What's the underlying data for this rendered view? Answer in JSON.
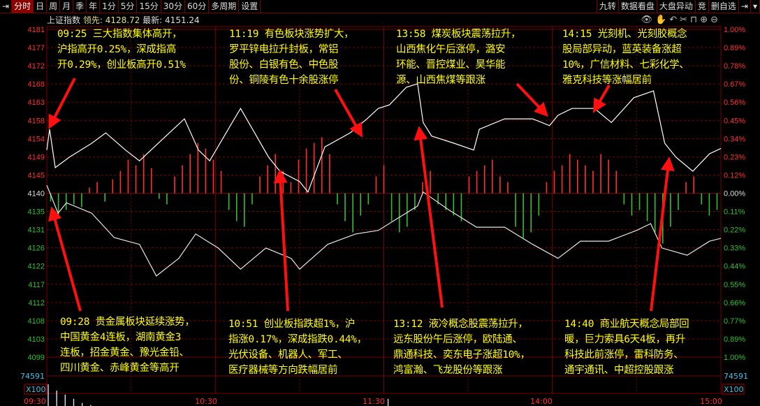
{
  "toolbar": {
    "items": [
      "分时",
      "日",
      "周",
      "月",
      "季",
      "年",
      "1分",
      "5分",
      "15分",
      "30分",
      "60分",
      "多周期",
      "设置"
    ],
    "active": "分时",
    "right_items": [
      "九转",
      "数据看盘",
      "大盘异动",
      "竞",
      "删自选"
    ]
  },
  "info": {
    "name": "上证指数",
    "lead_label": "领先:",
    "lead_value": "4128.72",
    "last_label": "最新:",
    "last_value": "4151.24"
  },
  "tools": [
    "eye-icon",
    "hand-icon",
    "undo-icon",
    "scissors-icon",
    "lock-icon",
    "zoom-in-icon",
    "zoom-out-icon"
  ],
  "colors": {
    "up": "#ff3030",
    "down": "#30c030",
    "grid": "#7a0000",
    "annotation": "#ffff00",
    "arrow": "#ff1010",
    "volume": "#cfe8ff"
  },
  "annotations": [
    {
      "lines": [
        "09:25 三大指数集体高开，",
        "沪指高开0.25%，深成指高",
        "开0.29%，创业板高开0.51%"
      ]
    },
    {
      "lines": [
        "11:19 有色板块涨势扩大，",
        "罗平锌电拉升封板，常铝",
        "股份、白银有色、中色股",
        "份、铜陵有色十余股涨停"
      ]
    },
    {
      "lines": [
        "13:58 煤炭板块震荡拉升，",
        "山西焦化午后涨停，潞安",
        "环能、晋控煤业、昊华能",
        "源、山西焦煤等跟涨"
      ]
    },
    {
      "lines": [
        "14:15 光刻机、光刻胶概念",
        "股局部异动，蓝英装备涨超",
        "10%，广信材料、七彩化学、",
        "雅克科技等涨幅居前"
      ]
    },
    {
      "lines": [
        "09:28 贵金属板块延续涨势，",
        "中国黄金4连板，湖南黄金3",
        "连板，招金黄金、豫光金铅、",
        "四川黄金、赤峰黄金等高开"
      ]
    },
    {
      "lines": [
        "10:51 创业板指跌超1%，沪",
        "指涨0.17%，深成指跌0.44%，",
        "光伏设备、机器人、军工、",
        "医疗器械等方向跌幅居前"
      ]
    },
    {
      "lines": [
        "13:12 液冷概念股震荡拉升，",
        "远东股份午后涨停，欧陆通、",
        "鼎通科技、奕东电子涨超10%，",
        "鸿富瀚、飞龙股份等跟涨"
      ]
    },
    {
      "lines": [
        "14:40 商业航天概念局部回",
        "暖，巨力索具6天4板，再升",
        "科技此前涨停，雷科防务、",
        "通宇通讯、中超控股跟涨"
      ]
    }
  ],
  "chart_data": {
    "type": "line",
    "price_ticks": [
      "4181",
      "4177",
      "4172",
      "4168",
      "4163",
      "4158",
      "4154",
      "4149",
      "4145",
      "4140",
      "4135",
      "4131",
      "4126",
      "4122",
      "4117",
      "4112",
      "4108",
      "4103",
      "4099"
    ],
    "pct_ticks": [
      "1.00%",
      "0.89%",
      "0.78%",
      "0.67%",
      "0.56%",
      "0.45%",
      "0.34%",
      "0.23%",
      "0.12%",
      "0.00%",
      "0.11%",
      "0.22%",
      "0.33%",
      "0.44%",
      "0.55%",
      "0.66%",
      "0.77%",
      "0.89%",
      "1.00%"
    ],
    "ylim": [
      4099,
      4181
    ],
    "prev_close": 4140,
    "time_ticks": [
      "09:30",
      "10:30",
      "11:30",
      "14:00",
      "15:00"
    ],
    "volume_labels": {
      "max": "74591",
      "unit": "X100"
    },
    "series": [
      {
        "points": [
          [
            "09:30",
            4150.8
          ],
          [
            "09:31",
            4156.0
          ],
          [
            "09:33",
            4146.4
          ],
          [
            "09:38",
            4149.0
          ],
          [
            "09:46",
            4152.5
          ],
          [
            "09:51",
            4155.1
          ],
          [
            "09:58",
            4150.8
          ],
          [
            "10:03",
            4148.1
          ],
          [
            "10:11",
            4153.4
          ],
          [
            "10:19",
            4158.6
          ],
          [
            "10:24",
            4150.8
          ],
          [
            "10:28",
            4148.1
          ],
          [
            "10:36",
            4157.7
          ],
          [
            "10:39",
            4161.2
          ],
          [
            "10:44",
            4155.1
          ],
          [
            "10:49",
            4149.0
          ],
          [
            "10:53",
            4145.5
          ],
          [
            "11:00",
            4142.9
          ],
          [
            "11:03",
            4140.3
          ],
          [
            "11:09",
            4151.6
          ],
          [
            "11:18",
            4155.1
          ],
          [
            "11:24",
            4158.6
          ],
          [
            "11:28",
            4161.2
          ],
          [
            "13:02",
            4162.1
          ],
          [
            "13:08",
            4166.5
          ],
          [
            "13:12",
            4167.4
          ],
          [
            "13:14",
            4157.7
          ],
          [
            "13:17",
            4154.3
          ],
          [
            "13:25",
            4152.5
          ],
          [
            "13:32",
            4150.8
          ],
          [
            "13:34",
            4156.0
          ],
          [
            "13:43",
            4158.6
          ],
          [
            "13:53",
            4158.6
          ],
          [
            "13:59",
            4156.9
          ],
          [
            "14:02",
            4159.5
          ],
          [
            "14:07",
            4161.2
          ],
          [
            "14:15",
            4161.2
          ],
          [
            "14:21",
            4157.7
          ],
          [
            "14:29",
            4163.9
          ],
          [
            "14:36",
            4165.6
          ],
          [
            "14:40",
            4152.5
          ],
          [
            "14:44",
            4149.0
          ],
          [
            "14:50",
            4145.5
          ],
          [
            "14:56",
            4149.9
          ],
          [
            "15:00",
            4151.2
          ]
        ]
      },
      {
        "points": [
          [
            "09:30",
            4142.0
          ],
          [
            "09:34",
            4135.0
          ],
          [
            "09:37",
            4137.6
          ],
          [
            "09:46",
            4135.0
          ],
          [
            "09:54",
            4128.9
          ],
          [
            "10:03",
            4127.2
          ],
          [
            "10:09",
            4119.3
          ],
          [
            "10:17",
            4123.7
          ],
          [
            "10:23",
            4129.8
          ],
          [
            "10:31",
            4126.3
          ],
          [
            "10:39",
            4121.0
          ],
          [
            "10:48",
            4126.3
          ],
          [
            "10:57",
            4123.7
          ],
          [
            "11:00",
            4121.0
          ],
          [
            "11:10",
            4127.2
          ],
          [
            "11:20",
            4129.8
          ],
          [
            "11:28",
            4130.7
          ],
          [
            "13:04",
            4133.3
          ],
          [
            "13:12",
            4136.8
          ],
          [
            "13:14",
            4140.3
          ],
          [
            "13:23",
            4135.9
          ],
          [
            "13:33",
            4131.5
          ],
          [
            "13:43",
            4131.5
          ],
          [
            "13:53",
            4127.2
          ],
          [
            "14:02",
            4123.7
          ],
          [
            "14:10",
            4128.0
          ],
          [
            "14:20",
            4128.0
          ],
          [
            "14:30",
            4130.7
          ],
          [
            "14:35",
            4132.4
          ],
          [
            "14:39",
            4126.3
          ],
          [
            "14:48",
            4124.5
          ],
          [
            "14:56",
            4128.0
          ],
          [
            "15:00",
            4128.7
          ]
        ]
      }
    ],
    "momentum": [
      -3,
      -8,
      -6,
      -4,
      -5,
      2,
      4,
      -3,
      5,
      8,
      12,
      10,
      14,
      9,
      -2,
      -4,
      6,
      10,
      14,
      18,
      16,
      12,
      8,
      -6,
      -10,
      -12,
      -4,
      6,
      10,
      14,
      8,
      4,
      12,
      16,
      18,
      20,
      14,
      -4,
      -10,
      -14,
      -8,
      -4,
      6,
      10,
      -10,
      -14,
      -12,
      -6,
      4,
      8,
      -4,
      -6,
      -8,
      -10,
      6,
      8,
      10,
      12,
      6,
      4,
      -12,
      -16,
      -14,
      -8,
      4,
      8,
      10,
      14,
      12,
      10,
      8,
      14,
      12,
      8,
      -4,
      -8,
      -6,
      -10,
      -14,
      -18,
      -12,
      -6,
      4,
      6,
      -4,
      -8,
      -6
    ],
    "volume": [
      2200,
      1900,
      1700,
      1500,
      1300,
      1200,
      1100,
      1000,
      950,
      900,
      850,
      800,
      780,
      740,
      700,
      680,
      650,
      620,
      600,
      580,
      560,
      540,
      520,
      500,
      490,
      480,
      470,
      460,
      450,
      440,
      430,
      420,
      410,
      400,
      400,
      390,
      380,
      380,
      370,
      370,
      1500,
      900,
      700,
      600,
      550,
      520,
      480,
      460,
      440,
      430,
      420,
      410,
      400,
      390,
      380,
      380,
      370,
      360,
      360,
      350,
      360,
      360,
      370,
      370,
      380,
      380,
      390,
      390,
      400,
      410,
      420,
      440,
      460,
      480,
      500,
      520,
      540,
      560,
      600,
      650
    ]
  }
}
